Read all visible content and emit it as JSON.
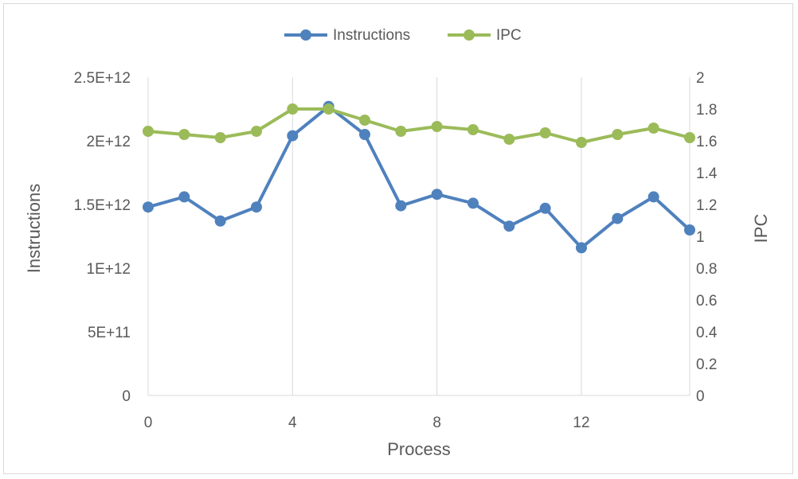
{
  "chart_data": {
    "type": "line",
    "xlabel": "Process",
    "ylabel_left": "Instructions",
    "ylabel_right": "IPC",
    "x": [
      0,
      1,
      2,
      3,
      4,
      5,
      6,
      7,
      8,
      9,
      10,
      11,
      12,
      13,
      14,
      15
    ],
    "x_ticks": [
      0,
      4,
      8,
      12
    ],
    "xlim": [
      0,
      15
    ],
    "y_left_lim": [
      0,
      2500000000000
    ],
    "y_left_ticks": [
      "0",
      "5E+11",
      "1E+12",
      "1.5E+12",
      "2E+12",
      "2.5E+12"
    ],
    "y_left_tick_values": [
      0,
      500000000000,
      1000000000000,
      1500000000000,
      2000000000000,
      2500000000000
    ],
    "y_right_lim": [
      0,
      2
    ],
    "y_right_ticks": [
      "0",
      "0.2",
      "0.4",
      "0.6",
      "0.8",
      "1",
      "1.2",
      "1.4",
      "1.6",
      "1.8",
      "2"
    ],
    "y_right_tick_values": [
      0,
      0.2,
      0.4,
      0.6,
      0.8,
      1,
      1.2,
      1.4,
      1.6,
      1.8,
      2
    ],
    "grid": "vertical",
    "legend_position": "top-center",
    "series": [
      {
        "name": "Instructions",
        "axis": "left",
        "color": "#4f81bd",
        "values": [
          1480000000000,
          1560000000000,
          1370000000000,
          1480000000000,
          2040000000000,
          2270000000000,
          2050000000000,
          1490000000000,
          1580000000000,
          1510000000000,
          1330000000000,
          1470000000000,
          1160000000000,
          1390000000000,
          1560000000000,
          1300000000000
        ]
      },
      {
        "name": "IPC",
        "axis": "right",
        "color": "#9bbb59",
        "values": [
          1.66,
          1.64,
          1.62,
          1.66,
          1.8,
          1.8,
          1.73,
          1.66,
          1.69,
          1.67,
          1.61,
          1.65,
          1.59,
          1.64,
          1.68,
          1.62
        ]
      }
    ]
  }
}
